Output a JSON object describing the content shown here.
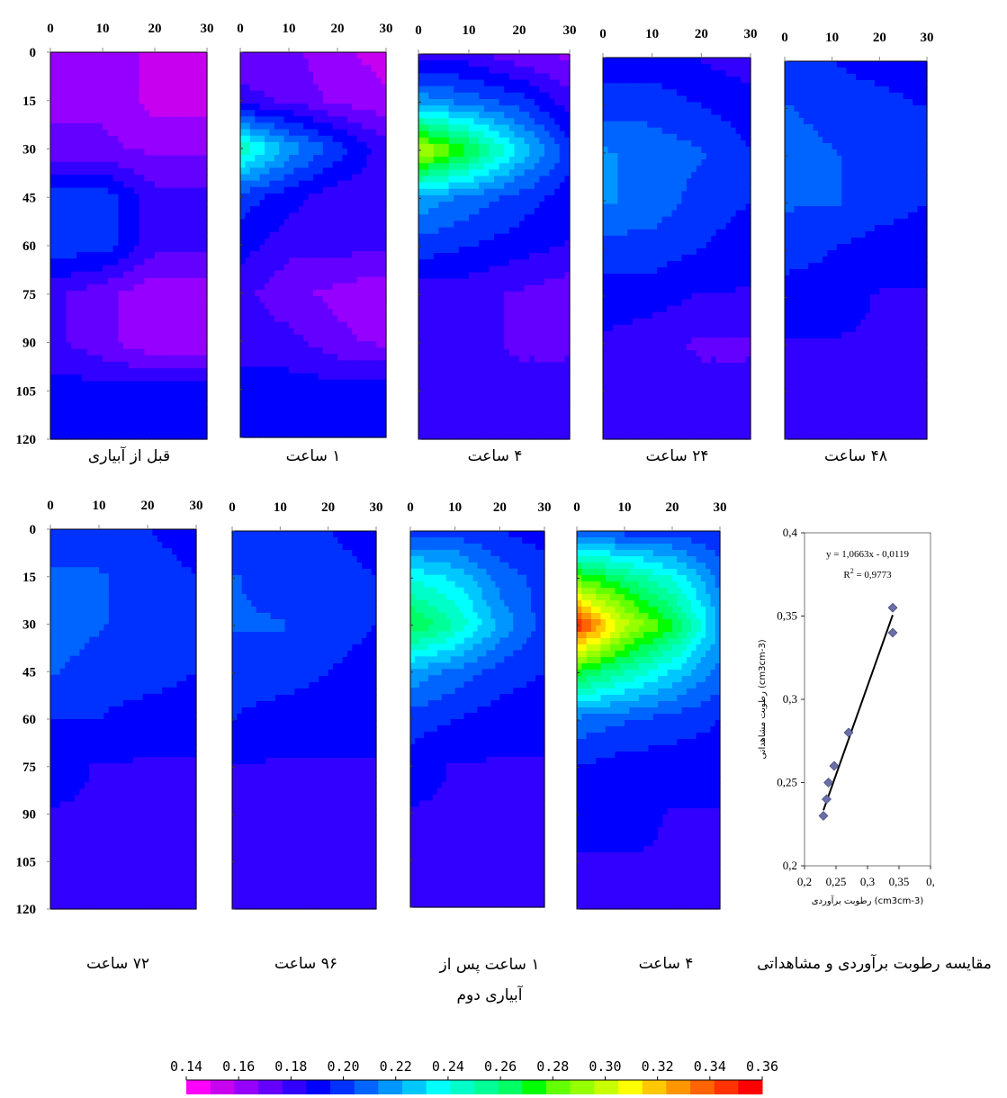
{
  "legend_values": [
    "0.14",
    "0.16",
    "0.18",
    "0.20",
    "0.22",
    "0.24",
    "0.26",
    "0.28",
    "0.30",
    "0.32",
    "0.34",
    "0.36"
  ],
  "colormap": [
    "#ff00ff",
    "#c800f0",
    "#9600ff",
    "#6400ff",
    "#3200ff",
    "#0000ff",
    "#0032ff",
    "#0064ff",
    "#0096ff",
    "#00c8ff",
    "#00ffff",
    "#00ffc8",
    "#00ff96",
    "#00ff64",
    "#00ff00",
    "#64ff00",
    "#96ff00",
    "#c8ff00",
    "#ffff00",
    "#ffc800",
    "#ff9600",
    "#ff6400",
    "#ff3200",
    "#ff0000"
  ],
  "captions": {
    "p1": "قبل از آبیاری",
    "p2": "۱ ساعت",
    "p3": "۴ ساعت",
    "p4": "۲۴ ساعت",
    "p5": "۴۸ ساعت",
    "p6": "۷۲ ساعت",
    "p7": "۹۶ ساعت",
    "p8": "۱ ساعت پس از آبیاری دوم",
    "p9": "۴ ساعت",
    "p10": "مقایسه رطوبت برآوردی و مشاهداتی"
  },
  "chart_data": [
    {
      "type": "heatmap",
      "caption": "قبل از آبیاری",
      "x_ticks": [
        "0",
        "10",
        "20",
        "30"
      ],
      "y_ticks": [
        "0",
        "15",
        "30",
        "45",
        "60",
        "75",
        "90",
        "105",
        "120"
      ],
      "xlim": [
        0,
        30
      ],
      "ylim": [
        0,
        120
      ],
      "x": [
        0,
        10,
        20,
        30
      ],
      "depth": [
        0,
        15,
        30,
        45,
        60,
        75,
        90,
        105,
        120
      ],
      "values": [
        [
          0.165,
          0.165,
          0.155,
          0.155
        ],
        [
          0.165,
          0.165,
          0.155,
          0.155
        ],
        [
          0.17,
          0.17,
          0.165,
          0.165
        ],
        [
          0.2,
          0.2,
          0.18,
          0.18
        ],
        [
          0.2,
          0.2,
          0.18,
          0.18
        ],
        [
          0.18,
          0.17,
          0.16,
          0.16
        ],
        [
          0.18,
          0.17,
          0.16,
          0.16
        ],
        [
          0.19,
          0.19,
          0.19,
          0.19
        ],
        [
          0.19,
          0.19,
          0.19,
          0.19
        ]
      ]
    },
    {
      "type": "heatmap",
      "caption": "۱ ساعت",
      "x_ticks": [
        "0",
        "10",
        "20",
        "30"
      ],
      "y_ticks": [],
      "xlim": [
        0,
        30
      ],
      "ylim": [
        0,
        120
      ],
      "x": [
        0,
        10,
        20,
        30
      ],
      "depth": [
        0,
        15,
        30,
        45,
        60,
        75,
        90,
        105,
        120
      ],
      "values": [
        [
          0.17,
          0.17,
          0.16,
          0.155
        ],
        [
          0.18,
          0.175,
          0.165,
          0.16
        ],
        [
          0.25,
          0.22,
          0.2,
          0.18
        ],
        [
          0.2,
          0.19,
          0.18,
          0.18
        ],
        [
          0.19,
          0.18,
          0.18,
          0.18
        ],
        [
          0.18,
          0.17,
          0.165,
          0.16
        ],
        [
          0.18,
          0.18,
          0.17,
          0.165
        ],
        [
          0.19,
          0.19,
          0.19,
          0.19
        ],
        [
          0.19,
          0.19,
          0.19,
          0.19
        ]
      ]
    },
    {
      "type": "heatmap",
      "caption": "۴ ساعت",
      "x_ticks": [
        "0",
        "10",
        "20",
        "30"
      ],
      "y_ticks": [],
      "xlim": [
        0,
        30
      ],
      "ylim": [
        0,
        120
      ],
      "x": [
        0,
        10,
        20,
        30
      ],
      "depth": [
        0,
        15,
        30,
        45,
        60,
        75,
        90,
        105,
        120
      ],
      "values": [
        [
          0.18,
          0.18,
          0.17,
          0.165
        ],
        [
          0.22,
          0.21,
          0.2,
          0.18
        ],
        [
          0.3,
          0.27,
          0.23,
          0.2
        ],
        [
          0.22,
          0.21,
          0.2,
          0.19
        ],
        [
          0.2,
          0.195,
          0.19,
          0.185
        ],
        [
          0.18,
          0.18,
          0.175,
          0.17
        ],
        [
          0.18,
          0.18,
          0.175,
          0.175
        ],
        [
          0.18,
          0.18,
          0.18,
          0.18
        ],
        [
          0.18,
          0.18,
          0.18,
          0.18
        ]
      ]
    },
    {
      "type": "heatmap",
      "caption": "۲۴ ساعت",
      "x_ticks": [
        "0",
        "10",
        "20",
        "30"
      ],
      "y_ticks": [],
      "xlim": [
        0,
        30
      ],
      "ylim": [
        0,
        120
      ],
      "x": [
        0,
        10,
        20,
        30
      ],
      "depth": [
        0,
        15,
        30,
        45,
        60,
        75,
        90,
        105,
        120
      ],
      "values": [
        [
          0.19,
          0.19,
          0.185,
          0.18
        ],
        [
          0.2,
          0.2,
          0.195,
          0.19
        ],
        [
          0.215,
          0.21,
          0.205,
          0.195
        ],
        [
          0.215,
          0.21,
          0.2,
          0.195
        ],
        [
          0.2,
          0.2,
          0.195,
          0.19
        ],
        [
          0.19,
          0.19,
          0.185,
          0.185
        ],
        [
          0.185,
          0.18,
          0.175,
          0.175
        ],
        [
          0.185,
          0.185,
          0.18,
          0.18
        ],
        [
          0.185,
          0.185,
          0.185,
          0.185
        ]
      ]
    },
    {
      "type": "heatmap",
      "caption": "۴۸ ساعت",
      "x_ticks": [
        "0",
        "10",
        "20",
        "30"
      ],
      "y_ticks": [],
      "xlim": [
        0,
        30
      ],
      "ylim": [
        0,
        120
      ],
      "x": [
        0,
        10,
        20,
        30
      ],
      "depth": [
        0,
        15,
        30,
        45,
        60,
        75,
        90,
        105,
        120
      ],
      "values": [
        [
          0.195,
          0.195,
          0.19,
          0.185
        ],
        [
          0.205,
          0.2,
          0.2,
          0.195
        ],
        [
          0.21,
          0.205,
          0.2,
          0.195
        ],
        [
          0.205,
          0.205,
          0.2,
          0.195
        ],
        [
          0.2,
          0.195,
          0.19,
          0.19
        ],
        [
          0.19,
          0.19,
          0.185,
          0.185
        ],
        [
          0.185,
          0.185,
          0.185,
          0.18
        ],
        [
          0.185,
          0.185,
          0.185,
          0.185
        ],
        [
          0.185,
          0.185,
          0.185,
          0.185
        ]
      ]
    },
    {
      "type": "heatmap",
      "caption": "۷۲ ساعت",
      "x_ticks": [
        "0",
        "10",
        "20",
        "30"
      ],
      "y_ticks": [
        "0",
        "15",
        "30",
        "45",
        "60",
        "75",
        "90",
        "105",
        "120"
      ],
      "xlim": [
        0,
        30
      ],
      "ylim": [
        0,
        120
      ],
      "x": [
        0,
        10,
        20,
        30
      ],
      "depth": [
        0,
        15,
        30,
        45,
        60,
        75,
        90,
        105,
        120
      ],
      "values": [
        [
          0.2,
          0.2,
          0.195,
          0.19
        ],
        [
          0.205,
          0.205,
          0.2,
          0.195
        ],
        [
          0.21,
          0.205,
          0.2,
          0.195
        ],
        [
          0.205,
          0.2,
          0.2,
          0.195
        ],
        [
          0.195,
          0.195,
          0.19,
          0.19
        ],
        [
          0.19,
          0.185,
          0.185,
          0.185
        ],
        [
          0.185,
          0.185,
          0.185,
          0.185
        ],
        [
          0.185,
          0.185,
          0.185,
          0.185
        ],
        [
          0.185,
          0.185,
          0.185,
          0.18
        ]
      ]
    },
    {
      "type": "heatmap",
      "caption": "۹۶ ساعت",
      "x_ticks": [
        "0",
        "10",
        "20",
        "30"
      ],
      "y_ticks": [],
      "xlim": [
        0,
        30
      ],
      "ylim": [
        0,
        120
      ],
      "x": [
        0,
        10,
        20,
        30
      ],
      "depth": [
        0,
        15,
        30,
        45,
        60,
        75,
        90,
        105,
        120
      ],
      "values": [
        [
          0.2,
          0.2,
          0.195,
          0.19
        ],
        [
          0.205,
          0.2,
          0.2,
          0.195
        ],
        [
          0.205,
          0.205,
          0.2,
          0.195
        ],
        [
          0.2,
          0.2,
          0.195,
          0.19
        ],
        [
          0.195,
          0.19,
          0.19,
          0.19
        ],
        [
          0.185,
          0.185,
          0.185,
          0.185
        ],
        [
          0.185,
          0.185,
          0.185,
          0.185
        ],
        [
          0.185,
          0.185,
          0.185,
          0.185
        ],
        [
          0.185,
          0.185,
          0.185,
          0.185
        ]
      ]
    },
    {
      "type": "heatmap",
      "caption": "۱ ساعت پس از آبیاری دوم",
      "x_ticks": [
        "0",
        "10",
        "20",
        "30"
      ],
      "y_ticks": [],
      "xlim": [
        0,
        30
      ],
      "ylim": [
        0,
        120
      ],
      "x": [
        0,
        10,
        20,
        30
      ],
      "depth": [
        0,
        15,
        30,
        45,
        60,
        75,
        90,
        105,
        120
      ],
      "values": [
        [
          0.2,
          0.2,
          0.195,
          0.19
        ],
        [
          0.24,
          0.23,
          0.21,
          0.2
        ],
        [
          0.27,
          0.25,
          0.22,
          0.2
        ],
        [
          0.22,
          0.21,
          0.2,
          0.195
        ],
        [
          0.2,
          0.195,
          0.19,
          0.19
        ],
        [
          0.19,
          0.185,
          0.185,
          0.185
        ],
        [
          0.185,
          0.185,
          0.185,
          0.185
        ],
        [
          0.185,
          0.185,
          0.185,
          0.185
        ],
        [
          0.185,
          0.185,
          0.185,
          0.185
        ]
      ]
    },
    {
      "type": "heatmap",
      "caption": "۴ ساعت",
      "x_ticks": [
        "0",
        "10",
        "20",
        "30"
      ],
      "y_ticks": [],
      "xlim": [
        0,
        30
      ],
      "ylim": [
        0,
        120
      ],
      "x": [
        0,
        10,
        20,
        30
      ],
      "depth": [
        0,
        15,
        30,
        45,
        60,
        75,
        90,
        105,
        120
      ],
      "values": [
        [
          0.205,
          0.2,
          0.2,
          0.195
        ],
        [
          0.28,
          0.26,
          0.24,
          0.21
        ],
        [
          0.35,
          0.3,
          0.27,
          0.22
        ],
        [
          0.27,
          0.25,
          0.23,
          0.21
        ],
        [
          0.21,
          0.205,
          0.2,
          0.195
        ],
        [
          0.195,
          0.19,
          0.19,
          0.19
        ],
        [
          0.19,
          0.19,
          0.185,
          0.185
        ],
        [
          0.185,
          0.185,
          0.185,
          0.185
        ],
        [
          0.185,
          0.185,
          0.185,
          0.185
        ]
      ]
    },
    {
      "type": "scatter",
      "caption": "مقایسه رطوبت برآوردی و مشاهداتی",
      "equation": "y = 1,0663x - 0,0119",
      "r2_label": "R",
      "r2_exp": "2",
      "r2_value": " = 0,9773",
      "xlabel": "رطوبت برآوردی (cm3cm-3)",
      "ylabel": "رطوبت مشاهداتی (cm3cm-3)",
      "x_ticks": [
        "0.2",
        "0.25",
        "0.3",
        "0.35",
        "0."
      ],
      "y_ticks": [
        "0.2",
        "0.25",
        "0.3",
        "0.35",
        "0.4"
      ],
      "xlim": [
        0.2,
        0.4
      ],
      "ylim": [
        0.2,
        0.4
      ],
      "points": [
        [
          0.23,
          0.23
        ],
        [
          0.235,
          0.24
        ],
        [
          0.238,
          0.25
        ],
        [
          0.247,
          0.26
        ],
        [
          0.27,
          0.28
        ],
        [
          0.34,
          0.34
        ],
        [
          0.34,
          0.355
        ]
      ],
      "trendline": {
        "slope": 1.0663,
        "intercept": -0.0119,
        "x_range": [
          0.23,
          0.34
        ]
      }
    }
  ]
}
